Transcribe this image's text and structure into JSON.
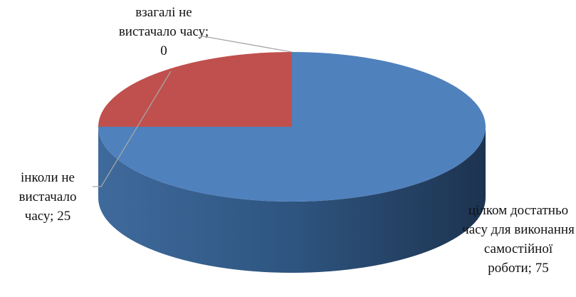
{
  "chart_data": {
    "type": "pie",
    "values": [
      75,
      25,
      0
    ],
    "value_labels": [
      "цілком достатньо часу для виконання самостійної роботи; 75",
      "інколи не вистачало часу; 25",
      "взагалі не вистачало часу; 0"
    ],
    "colors": [
      "#4f81bd",
      "#c0504d",
      "#9bbb59"
    ],
    "side_colors": [
      "#2b4a6f",
      "#7a2e2c",
      "#5d7535"
    ]
  }
}
